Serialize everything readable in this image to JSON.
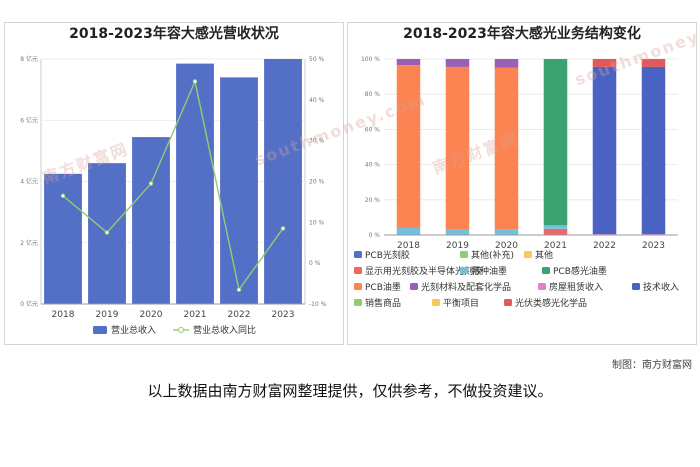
{
  "watermarks": [
    "南方财富网",
    "southmoney.com"
  ],
  "credit": "制图：南方财富网",
  "disclaimer": "以上数据由南方财富网整理提供，仅供参考，不做投资建议。",
  "chart_data": [
    {
      "type": "bar",
      "title": "2018-2023年容大感光营收状况",
      "categories": [
        "2018",
        "2019",
        "2020",
        "2021",
        "2022",
        "2023"
      ],
      "ylim": [
        0,
        8
      ],
      "y_ticks": [
        "0 亿元",
        "2 亿元",
        "4 亿元",
        "6 亿元",
        "8 亿元"
      ],
      "y2lim": [
        -10,
        50
      ],
      "y2_ticks": [
        "-10 %",
        "0 %",
        "10 %",
        "20 %",
        "30 %",
        "40 %",
        "50 %"
      ],
      "series": [
        {
          "name": "营业总收入",
          "kind": "bar",
          "axis": "left",
          "color": "#5470c6",
          "values": [
            4.25,
            4.6,
            5.45,
            7.85,
            7.4,
            8.0
          ]
        },
        {
          "name": "营业总收入同比",
          "kind": "line",
          "axis": "right",
          "color": "#91cc75",
          "values": [
            16.5,
            7.5,
            19.5,
            44.5,
            -6.5,
            8.5
          ]
        }
      ],
      "legend_position": "bottom"
    },
    {
      "type": "bar",
      "stacked": true,
      "title": "2018-2023年容大感光业务结构变化",
      "categories": [
        "2018",
        "2019",
        "2020",
        "2021",
        "2022",
        "2023"
      ],
      "ylim": [
        0,
        100
      ],
      "y_ticks": [
        "0 %",
        "20 %",
        "40 %",
        "60 %",
        "80 %",
        "100 %"
      ],
      "series": [
        {
          "name": "PCB光刻胶",
          "color": "#5470c6",
          "values": [
            0,
            0,
            0,
            0,
            0,
            0
          ]
        },
        {
          "name": "其他(补充)",
          "color": "#91cc75",
          "values": [
            0,
            0,
            0,
            0,
            0,
            0
          ]
        },
        {
          "name": "其他",
          "color": "#fac858",
          "values": [
            0,
            0,
            0,
            0,
            0,
            0
          ]
        },
        {
          "name": "显示用光刻胶及半导体光刻胶",
          "color": "#ee6666",
          "values": [
            0,
            0,
            0,
            3.5,
            0,
            0
          ]
        },
        {
          "name": "特种油墨",
          "color": "#73c0de",
          "values": [
            4,
            3,
            3,
            2,
            0,
            0
          ]
        },
        {
          "name": "PCB感光油墨",
          "color": "#3ba272",
          "values": [
            0,
            0,
            0,
            94.5,
            0,
            0
          ]
        },
        {
          "name": "PCB油墨",
          "color": "#fc8452",
          "values": [
            92.5,
            92.5,
            92,
            0,
            0,
            0
          ]
        },
        {
          "name": "光刻材料及配套化学品",
          "color": "#9a60b4",
          "values": [
            3.5,
            4.5,
            5,
            0,
            0,
            0
          ]
        },
        {
          "name": "房屋租赁收入",
          "color": "#ea7ccc",
          "values": [
            0,
            0,
            0,
            0,
            0.5,
            0.5
          ]
        },
        {
          "name": "技术收入",
          "color": "#4a63c2",
          "values": [
            0,
            0,
            0,
            0,
            95,
            95
          ]
        },
        {
          "name": "销售商品",
          "color": "#91cc75",
          "values": [
            0,
            0,
            0,
            0,
            0,
            0
          ]
        },
        {
          "name": "平衡项目",
          "color": "#fac858",
          "values": [
            0,
            0,
            0,
            0,
            0,
            0
          ]
        },
        {
          "name": "光伏类感光化学品",
          "color": "#e05a5a",
          "values": [
            0,
            0,
            0,
            0,
            4.5,
            4.5
          ]
        }
      ],
      "legend_position": "bottom"
    }
  ]
}
